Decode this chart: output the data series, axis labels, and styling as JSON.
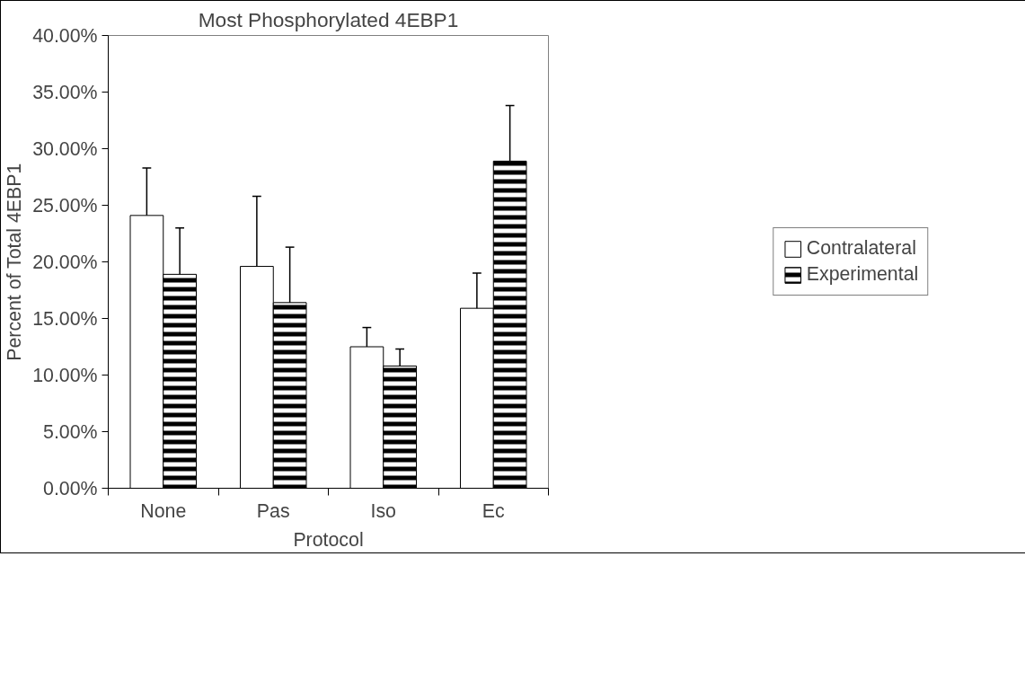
{
  "chart_data": {
    "type": "bar",
    "title": "Most Phosphorylated 4EBP1",
    "xlabel": "Protocol",
    "ylabel": "Percent of Total 4EBP1",
    "categories": [
      "None",
      "Pas",
      "Iso",
      "Ec"
    ],
    "series": [
      {
        "name": "Contralateral",
        "color": "#ffffff",
        "values": [
          24.1,
          19.6,
          12.5,
          15.9
        ],
        "errors": [
          [
            24.1,
            28.3
          ],
          [
            19.6,
            25.8
          ],
          [
            12.5,
            14.2
          ],
          [
            15.9,
            19.0
          ]
        ]
      },
      {
        "name": "Experimental",
        "color": "#000000",
        "values": [
          18.9,
          16.4,
          10.8,
          28.9
        ],
        "errors": [
          [
            18.9,
            23.0
          ],
          [
            16.4,
            21.3
          ],
          [
            10.8,
            12.3
          ],
          [
            28.9,
            33.8
          ]
        ]
      }
    ],
    "ylim": [
      0,
      40
    ],
    "yticks": [
      {
        "value": 0,
        "label": "0.00%"
      },
      {
        "value": 5,
        "label": "5.00%"
      },
      {
        "value": 10,
        "label": "10.00%"
      },
      {
        "value": 15,
        "label": "15.00%"
      },
      {
        "value": 20,
        "label": "20.00%"
      },
      {
        "value": 25,
        "label": "25.00%"
      },
      {
        "value": 30,
        "label": "30.00%"
      },
      {
        "value": 35,
        "label": "35.00%"
      },
      {
        "value": 40,
        "label": "40.00%"
      }
    ],
    "grid": false,
    "legend": "right"
  }
}
